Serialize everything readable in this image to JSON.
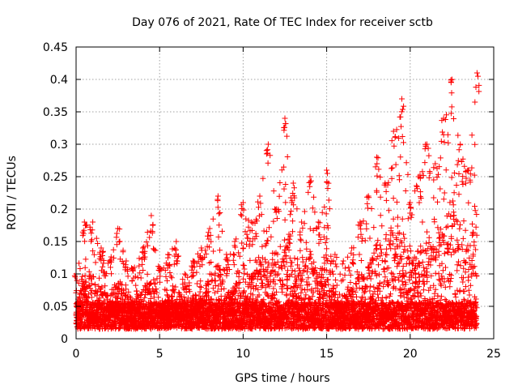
{
  "chart_data": {
    "type": "scatter",
    "title": "Day 076 of 2021, Rate Of TEC Index for receiver sctb",
    "xlabel": "GPS time / hours",
    "ylabel": "ROTI / TECUs",
    "xlim": [
      0,
      25
    ],
    "ylim": [
      0,
      0.45
    ],
    "xticks": [
      "0",
      "5",
      "10",
      "15",
      "20",
      "25"
    ],
    "yticks": [
      "0",
      "0.05",
      "0.1",
      "0.15",
      "0.2",
      "0.25",
      "0.3",
      "0.35",
      "0.4",
      "0.45"
    ],
    "grid": true,
    "marker": "plus",
    "series_color": "#ff0000",
    "envelope_hours": [
      0,
      0.5,
      1,
      1.5,
      2,
      2.5,
      3,
      3.5,
      4,
      4.5,
      5,
      5.5,
      6,
      6.5,
      7,
      7.5,
      8,
      8.5,
      9,
      9.5,
      10,
      10.5,
      11,
      11.5,
      12,
      12.5,
      13,
      13.5,
      14,
      14.5,
      15,
      15.5,
      16,
      16.5,
      17,
      17.5,
      18,
      18.5,
      19,
      19.5,
      20,
      20.5,
      21,
      21.5,
      22,
      22.5,
      23,
      23.5,
      24
    ],
    "envelope_max": [
      0.1,
      0.18,
      0.18,
      0.14,
      0.12,
      0.17,
      0.12,
      0.11,
      0.14,
      0.19,
      0.11,
      0.13,
      0.15,
      0.1,
      0.12,
      0.14,
      0.17,
      0.22,
      0.13,
      0.15,
      0.21,
      0.18,
      0.22,
      0.3,
      0.2,
      0.34,
      0.24,
      0.18,
      0.25,
      0.18,
      0.26,
      0.13,
      0.12,
      0.14,
      0.18,
      0.22,
      0.28,
      0.24,
      0.32,
      0.37,
      0.21,
      0.25,
      0.3,
      0.27,
      0.34,
      0.4,
      0.3,
      0.26,
      0.41
    ],
    "typical_low": 0.015,
    "typical_center": 0.04
  }
}
